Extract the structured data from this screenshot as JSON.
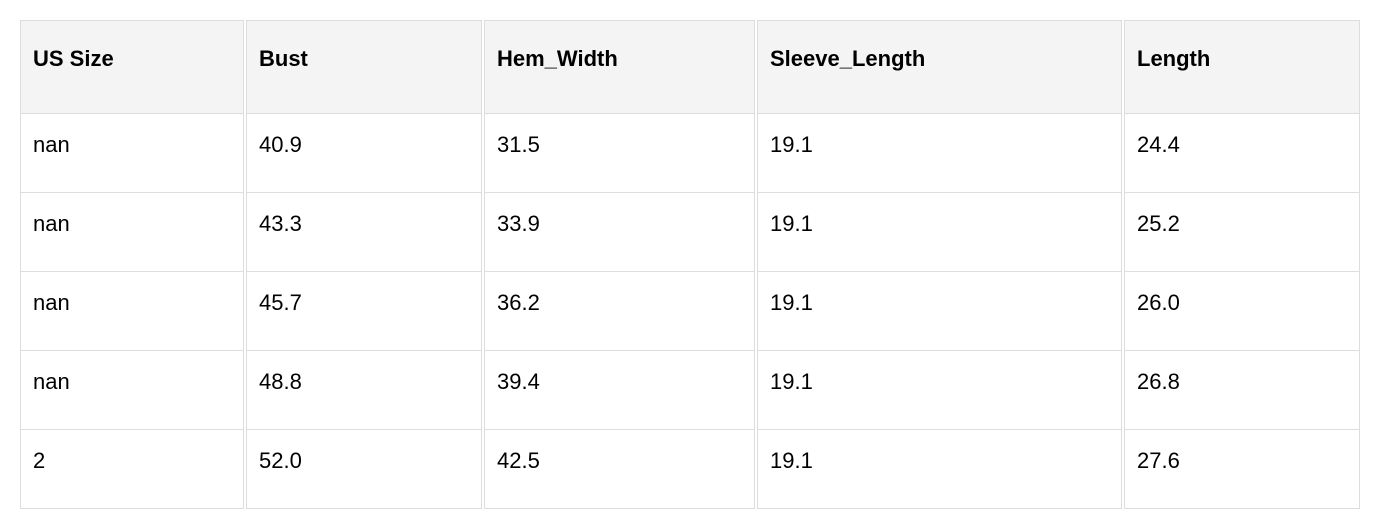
{
  "table": {
    "headers": [
      "US Size",
      "Bust",
      "Hem_Width",
      "Sleeve_Length",
      "Length"
    ],
    "rows": [
      [
        "nan",
        "40.9",
        "31.5",
        "19.1",
        "24.4"
      ],
      [
        "nan",
        "43.3",
        "33.9",
        "19.1",
        "25.2"
      ],
      [
        "nan",
        "45.7",
        "36.2",
        "19.1",
        "26.0"
      ],
      [
        "nan",
        "48.8",
        "39.4",
        "19.1",
        "26.8"
      ],
      [
        "2",
        "52.0",
        "42.5",
        "19.1",
        "27.6"
      ]
    ]
  }
}
